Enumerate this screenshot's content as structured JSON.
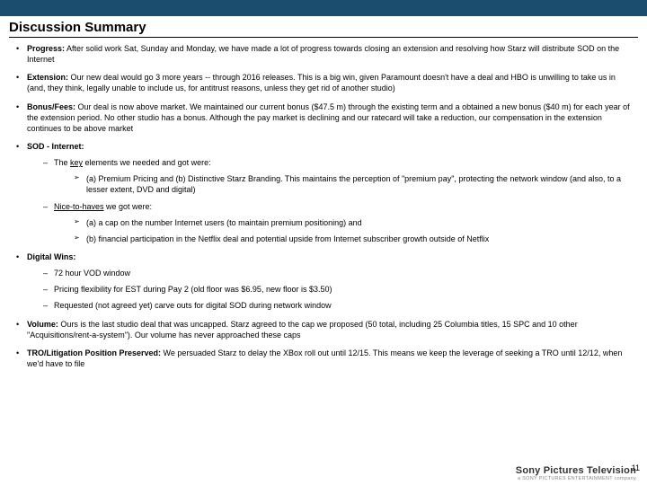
{
  "colors": {
    "header_bar": "#1a4d6e",
    "background": "#ffffff",
    "text": "#000000",
    "footer_text": "#555555",
    "footer_sub": "#888888"
  },
  "title": "Discussion Summary",
  "bullets": [
    {
      "label": "Progress:",
      "text": " After solid work Sat, Sunday and Monday, we have made a lot of progress towards closing an extension and resolving how Starz will distribute SOD on the Internet"
    },
    {
      "label": "Extension:",
      "text": " Our new deal would go 3 more years -- through 2016 releases. This is a big win, given Paramount doesn't have a deal and HBO is unwilling to take us in (and, they think, legally unable to include us, for antitrust reasons, unless they get rid of another studio)"
    },
    {
      "label": "Bonus/Fees:",
      "text": " Our deal is now above market. We maintained our current bonus ($47.5 m) through the existing term and a obtained a new bonus ($40 m) for each year of the extension period. No other studio has a bonus. Although the pay market is declining and our ratecard will take a reduction, our compensation in the extension continues to be above market"
    }
  ],
  "sod": {
    "label": "SOD - Internet:",
    "key_intro": "The ",
    "key_word": "key",
    "key_rest": " elements we needed and got were:",
    "key_item": "(a) Premium Pricing and (b) Distinctive Starz Branding.  This maintains the perception of \"premium pay\", protecting the network window (and also, to a lesser extent, DVD and digital)",
    "nice_word": "Nice-to-haves",
    "nice_rest": " we got were:",
    "nice_items": [
      "(a) a cap on the number Internet users (to maintain premium positioning) and",
      "(b) financial participation in the Netflix deal and potential upside from Internet subscriber growth outside of Netflix"
    ]
  },
  "digital": {
    "label": "Digital Wins:",
    "items": [
      "72 hour VOD window",
      "Pricing flexibility for EST during Pay 2 (old floor was $6.95, new floor is $3.50)",
      "Requested (not agreed yet) carve outs for digital SOD during network window"
    ]
  },
  "volume": {
    "label": "Volume:",
    "text": " Ours is the last studio deal that was uncapped.  Starz agreed to the cap we proposed (50 total, including 25 Columbia titles, 15 SPC and 10 other \"Acquisitions/rent-a-system\").  Our volume has never approached these caps"
  },
  "tro": {
    "label": "TRO/Litigation Position Preserved:",
    "text": " We persuaded Starz to delay the XBox roll out until 12/15.  This means we keep the leverage of seeking a TRO until 12/12, when we'd have to file"
  },
  "footer": {
    "brand": "Sony Pictures Television",
    "sub": "a SONY PICTURES ENTERTAINMENT company"
  },
  "page_number": "11"
}
